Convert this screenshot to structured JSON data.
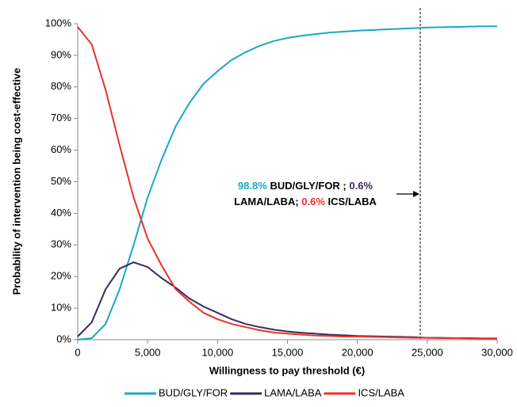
{
  "chart_data": {
    "type": "line",
    "x_label": "Willingness to pay threshold (€)",
    "y_label": "Probability of intervention being cost-effective",
    "x": [
      0,
      1000,
      2000,
      3000,
      4000,
      5000,
      6000,
      7000,
      8000,
      9000,
      10000,
      11000,
      12000,
      13000,
      14000,
      15000,
      16000,
      17000,
      18000,
      19000,
      20000,
      21000,
      22000,
      23000,
      24000,
      25000,
      26000,
      27000,
      28000,
      29000,
      30000
    ],
    "series": [
      {
        "name": "BUD/GLY/FOR",
        "color": "#1aa8c4",
        "values": [
          0,
          0.5,
          5,
          16,
          30,
          45,
          57,
          67.5,
          75,
          81,
          85,
          88.5,
          91,
          93,
          94.5,
          95.5,
          96.2,
          96.7,
          97.2,
          97.5,
          97.8,
          98,
          98.2,
          98.4,
          98.6,
          98.8,
          98.9,
          99,
          99.1,
          99.2,
          99.2
        ]
      },
      {
        "name": "LAMA/LABA",
        "color": "#3b2a5a",
        "values": [
          1,
          5.5,
          16,
          22.5,
          24.5,
          23,
          19.5,
          16.5,
          13,
          10.5,
          8.5,
          6.5,
          5,
          4,
          3.2,
          2.6,
          2.2,
          1.9,
          1.6,
          1.4,
          1.2,
          1.1,
          1,
          0.9,
          0.8,
          0.6,
          0.6,
          0.5,
          0.5,
          0.4,
          0.4
        ]
      },
      {
        "name": "ICS/LABA",
        "color": "#e8332a",
        "values": [
          99,
          93.5,
          79,
          61.5,
          45,
          32,
          23.5,
          16,
          12,
          8.5,
          6.5,
          5,
          4,
          3,
          2.3,
          1.9,
          1.6,
          1.3,
          1.2,
          1,
          1,
          0.9,
          0.8,
          0.7,
          0.6,
          0.6,
          0.5,
          0.5,
          0.4,
          0.4,
          0.4
        ]
      }
    ],
    "xlim": [
      0,
      30000
    ],
    "ylim": [
      0,
      100
    ],
    "xticks": [
      0,
      {
        "value": 5000,
        "label": "5,000"
      },
      {
        "value": 10000,
        "label": "10,000"
      },
      {
        "value": 15000,
        "label": "15,000"
      },
      {
        "value": 20000,
        "label": "20,000"
      },
      {
        "value": 25000,
        "label": "25,000"
      },
      {
        "value": 30000,
        "label": "30,000"
      }
    ],
    "yticks": [
      {
        "value": 0,
        "label": "0%"
      },
      {
        "value": 10,
        "label": "10%"
      },
      {
        "value": 20,
        "label": "20%"
      },
      {
        "value": 30,
        "label": "30%"
      },
      {
        "value": 40,
        "label": "40%"
      },
      {
        "value": 50,
        "label": "50%"
      },
      {
        "value": 60,
        "label": "60%"
      },
      {
        "value": 70,
        "label": "70%"
      },
      {
        "value": 80,
        "label": "80%"
      },
      {
        "value": 90,
        "label": "90%"
      },
      {
        "value": 100,
        "label": "100%"
      }
    ],
    "reference_line_x": 24500,
    "annotation": [
      [
        {
          "text": "98.8%",
          "color": "#1aa8c4"
        },
        {
          "text": " BUD/GLY/FOR ; ",
          "color": "#000000"
        },
        {
          "text": "0.6%",
          "color": "#3b2a5a"
        }
      ],
      [
        {
          "text": "LAMA/LABA; ",
          "color": "#000000"
        },
        {
          "text": "0.6%",
          "color": "#e8332a"
        },
        {
          "text": " ICS/LABA",
          "color": "#000000"
        }
      ]
    ],
    "legend": "bottom"
  }
}
